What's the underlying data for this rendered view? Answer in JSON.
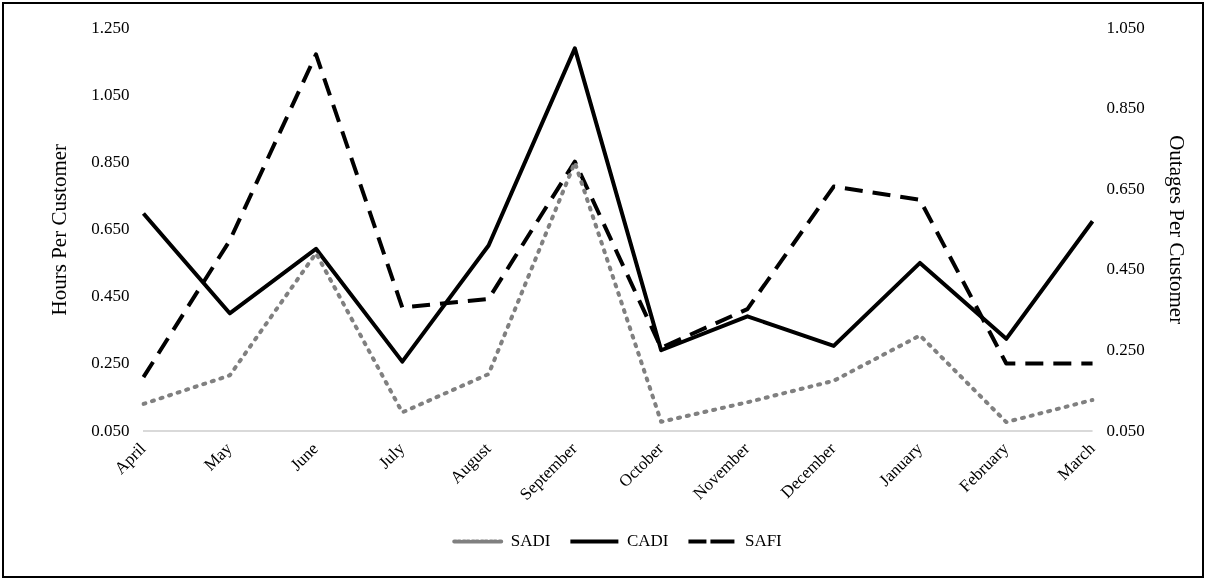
{
  "chart_data": {
    "type": "line",
    "categories": [
      "April",
      "May",
      "June",
      "July",
      "August",
      "September",
      "October",
      "November",
      "December",
      "January",
      "February",
      "March"
    ],
    "series": [
      {
        "name": "SADI",
        "color": "#808080",
        "line_style": "dotted",
        "values": [
          0.131,
          0.216,
          0.58,
          0.106,
          0.22,
          0.85,
          0.078,
          0.136,
          0.2,
          0.335,
          0.077,
          0.143
        ]
      },
      {
        "name": "CADI",
        "color": "#000000",
        "line_style": "solid",
        "values": [
          0.698,
          0.401,
          0.593,
          0.257,
          0.603,
          1.19,
          0.291,
          0.392,
          0.304,
          0.551,
          0.325,
          0.675
        ]
      },
      {
        "name": "SAFI",
        "color": "#000000",
        "line_style": "dashed",
        "axis": "y2",
        "values": [
          0.184,
          0.523,
          0.985,
          0.357,
          0.378,
          0.719,
          0.257,
          0.353,
          0.657,
          0.624,
          0.218,
          0.218
        ]
      }
    ],
    "ylabel": "Hours Per Customer",
    "y2label": "Outages Per Customer",
    "ylim": [
      0.05,
      1.25
    ],
    "yticks": [
      {
        "value": 0.05,
        "label": "0.050"
      },
      {
        "value": 0.25,
        "label": "0.250"
      },
      {
        "value": 0.45,
        "label": "0.450"
      },
      {
        "value": 0.65,
        "label": "0.650"
      },
      {
        "value": 0.85,
        "label": "0.850"
      },
      {
        "value": 1.05,
        "label": "1.050"
      },
      {
        "value": 1.25,
        "label": "1.250"
      }
    ],
    "y2lim": [
      0.05,
      1.05
    ],
    "y2ticks": [
      {
        "value": 0.05,
        "label": "0.050"
      },
      {
        "value": 0.25,
        "label": "0.250"
      },
      {
        "value": 0.45,
        "label": "0.450"
      },
      {
        "value": 0.65,
        "label": "0.650"
      },
      {
        "value": 0.85,
        "label": "0.850"
      },
      {
        "value": 1.05,
        "label": "1.050"
      }
    ],
    "grid": false,
    "legend": "bottom",
    "marker": "none"
  }
}
